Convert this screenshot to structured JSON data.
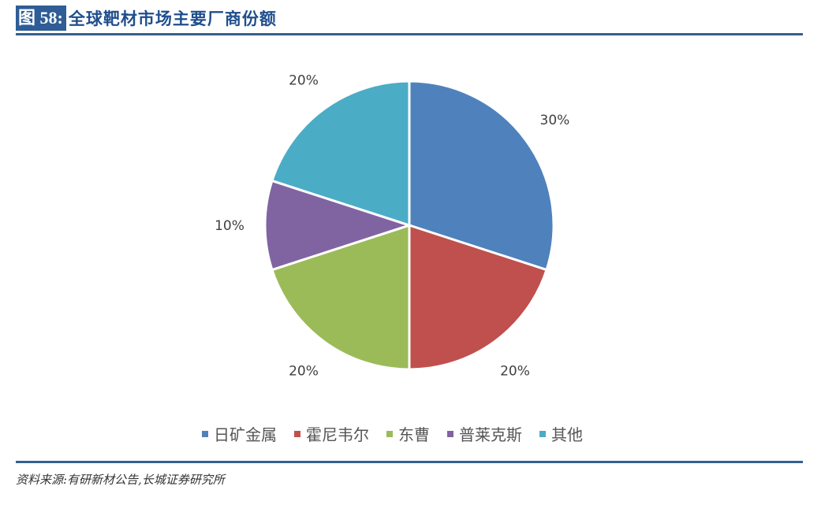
{
  "header": {
    "figure_label": "图 58:",
    "title": "全球靶材市场主要厂商份额"
  },
  "chart_data": {
    "type": "pie",
    "title": "全球靶材市场主要厂商份额",
    "categories": [
      "日矿金属",
      "霍尼韦尔",
      "东曹",
      "普莱克斯",
      "其他"
    ],
    "values": [
      30,
      20,
      20,
      10,
      20
    ],
    "labels": [
      "30%",
      "20%",
      "20%",
      "10%",
      "20%"
    ],
    "colors": [
      "#4f81bd",
      "#c0504d",
      "#9bbb59",
      "#8064a2",
      "#4bacc6"
    ],
    "start_angle": "12 o'clock, clockwise",
    "legend_position": "bottom"
  },
  "legend": {
    "items": [
      {
        "label": "日矿金属",
        "color": "#4f81bd"
      },
      {
        "label": "霍尼韦尔",
        "color": "#c0504d"
      },
      {
        "label": "东曹",
        "color": "#9bbb59"
      },
      {
        "label": "普莱克斯",
        "color": "#8064a2"
      },
      {
        "label": "其他",
        "color": "#4bacc6"
      }
    ]
  },
  "footer": {
    "source": "资料来源:有研新材公告,长城证券研究所"
  }
}
